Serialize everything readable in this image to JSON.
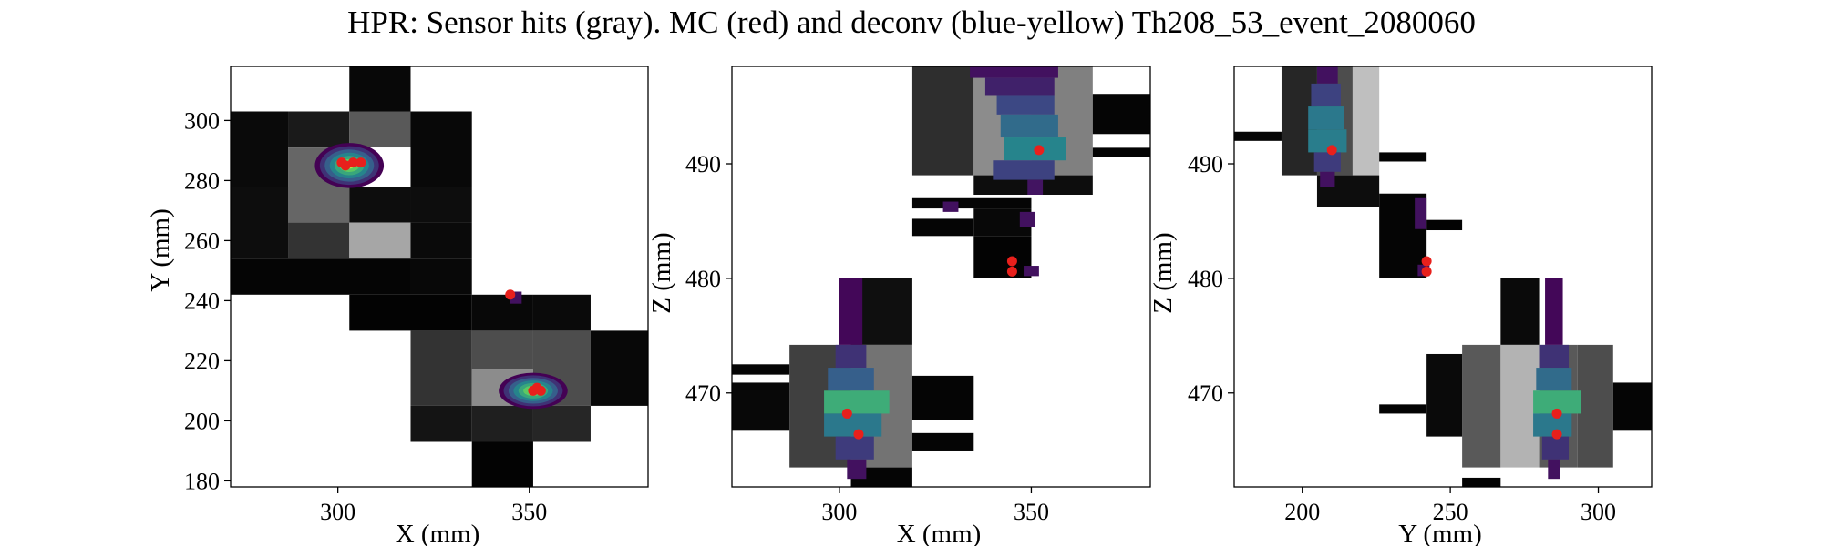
{
  "title": "HPR: Sensor hits (gray). MC (red) and deconv (blue-yellow) Th208_53_event_2080060",
  "colors": {
    "mc": "#e8201c",
    "deconv_colormap": [
      "#440154",
      "#3b528b",
      "#21918c",
      "#5ec962",
      "#fde725"
    ],
    "sensor_colormap": [
      "#000000",
      "#ffffff"
    ]
  },
  "chart_data": [
    {
      "type": "heatmap",
      "xlabel": "X (mm)",
      "ylabel": "Y (mm)",
      "xlim": [
        272,
        381
      ],
      "ylim": [
        178,
        318
      ],
      "xticks": [
        300,
        350
      ],
      "yticks": [
        180,
        200,
        220,
        240,
        260,
        280,
        300
      ],
      "sensor_hits": [
        {
          "x0": 303,
          "x1": 319,
          "y0": 303,
          "y1": 318,
          "v": 0.03
        },
        {
          "x0": 272,
          "x1": 287,
          "y0": 278,
          "y1": 303,
          "v": 0.04
        },
        {
          "x0": 287,
          "x1": 303,
          "y0": 291,
          "y1": 303,
          "v": 0.1
        },
        {
          "x0": 287,
          "x1": 303,
          "y0": 266,
          "y1": 291,
          "v": 0.4
        },
        {
          "x0": 303,
          "x1": 319,
          "y0": 291,
          "y1": 303,
          "v": 0.35
        },
        {
          "x0": 303,
          "x1": 319,
          "y0": 278,
          "y1": 291,
          "v": 1.0
        },
        {
          "x0": 303,
          "x1": 319,
          "y0": 266,
          "y1": 278,
          "v": 0.05
        },
        {
          "x0": 319,
          "x1": 335,
          "y0": 278,
          "y1": 303,
          "v": 0.03
        },
        {
          "x0": 319,
          "x1": 335,
          "y0": 266,
          "y1": 278,
          "v": 0.05
        },
        {
          "x0": 272,
          "x1": 287,
          "y0": 254,
          "y1": 278,
          "v": 0.05
        },
        {
          "x0": 287,
          "x1": 303,
          "y0": 254,
          "y1": 266,
          "v": 0.2
        },
        {
          "x0": 303,
          "x1": 319,
          "y0": 254,
          "y1": 266,
          "v": 0.65
        },
        {
          "x0": 319,
          "x1": 335,
          "y0": 254,
          "y1": 266,
          "v": 0.04
        },
        {
          "x0": 272,
          "x1": 319,
          "y0": 242,
          "y1": 254,
          "v": 0.02
        },
        {
          "x0": 319,
          "x1": 335,
          "y0": 242,
          "y1": 254,
          "v": 0.03
        },
        {
          "x0": 303,
          "x1": 335,
          "y0": 230,
          "y1": 242,
          "v": 0.01
        },
        {
          "x0": 335,
          "x1": 351,
          "y0": 230,
          "y1": 242,
          "v": 0.03
        },
        {
          "x0": 351,
          "x1": 366,
          "y0": 230,
          "y1": 242,
          "v": 0.04
        },
        {
          "x0": 319,
          "x1": 335,
          "y0": 205,
          "y1": 230,
          "v": 0.2
        },
        {
          "x0": 335,
          "x1": 351,
          "y0": 217,
          "y1": 230,
          "v": 0.3
        },
        {
          "x0": 335,
          "x1": 351,
          "y0": 205,
          "y1": 217,
          "v": 0.55
        },
        {
          "x0": 351,
          "x1": 366,
          "y0": 205,
          "y1": 230,
          "v": 0.3
        },
        {
          "x0": 366,
          "x1": 381,
          "y0": 205,
          "y1": 230,
          "v": 0.03
        },
        {
          "x0": 319,
          "x1": 335,
          "y0": 193,
          "y1": 205,
          "v": 0.08
        },
        {
          "x0": 335,
          "x1": 351,
          "y0": 193,
          "y1": 205,
          "v": 0.12
        },
        {
          "x0": 351,
          "x1": 366,
          "y0": 193,
          "y1": 205,
          "v": 0.15
        },
        {
          "x0": 335,
          "x1": 351,
          "y0": 178,
          "y1": 193,
          "v": 0.01
        }
      ],
      "deconv_blobs": [
        {
          "cx": 303,
          "cy": 285,
          "rx": 9,
          "ry": 7.5,
          "peak": 0.9
        },
        {
          "cx": 351,
          "cy": 210,
          "rx": 9,
          "ry": 6,
          "peak": 0.9
        }
      ],
      "deconv_cells": [
        {
          "x0": 345,
          "x1": 348,
          "y0": 239,
          "y1": 243,
          "v": 0.05
        }
      ],
      "mc_points": [
        {
          "x": 301,
          "y": 286
        },
        {
          "x": 302,
          "y": 285
        },
        {
          "x": 304,
          "y": 286
        },
        {
          "x": 306,
          "y": 286
        },
        {
          "x": 345,
          "y": 242
        },
        {
          "x": 351,
          "y": 210
        },
        {
          "x": 352,
          "y": 211
        },
        {
          "x": 353,
          "y": 210
        }
      ]
    },
    {
      "type": "heatmap",
      "xlabel": "X (mm)",
      "ylabel": "Z (mm)",
      "xlim": [
        272,
        381
      ],
      "ylim": [
        461.8,
        498.5
      ],
      "xticks": [
        300,
        350
      ],
      "yticks": [
        470,
        480,
        490
      ],
      "sensor_hits": [
        {
          "x0": 319,
          "x1": 335,
          "y0": 489,
          "y1": 498.5,
          "v": 0.18
        },
        {
          "x0": 335,
          "x1": 350,
          "y0": 489,
          "y1": 498.5,
          "v": 0.55
        },
        {
          "x0": 350,
          "x1": 366,
          "y0": 489,
          "y1": 498.5,
          "v": 0.5
        },
        {
          "x0": 366,
          "x1": 381,
          "y0": 492.6,
          "y1": 496.1,
          "v": 0.02
        },
        {
          "x0": 366,
          "x1": 381,
          "y0": 490.6,
          "y1": 491.4,
          "v": 0.01
        },
        {
          "x0": 335,
          "x1": 366,
          "y0": 487.3,
          "y1": 489,
          "v": 0.05
        },
        {
          "x0": 319,
          "x1": 350,
          "y0": 486.1,
          "y1": 487.0,
          "v": 0.02
        },
        {
          "x0": 335,
          "x1": 350,
          "y0": 483.7,
          "y1": 486.1,
          "v": 0.03
        },
        {
          "x0": 319,
          "x1": 335,
          "y0": 483.7,
          "y1": 485.2,
          "v": 0.02
        },
        {
          "x0": 335,
          "x1": 350,
          "y0": 480.0,
          "y1": 483.7,
          "v": 0.01
        },
        {
          "x0": 303,
          "x1": 319,
          "y0": 474.2,
          "y1": 480.0,
          "v": 0.06
        },
        {
          "x0": 287,
          "x1": 303,
          "y0": 463.5,
          "y1": 474.2,
          "v": 0.25
        },
        {
          "x0": 303,
          "x1": 319,
          "y0": 463.5,
          "y1": 474.2,
          "v": 0.45
        },
        {
          "x0": 272,
          "x1": 287,
          "y0": 471.6,
          "y1": 472.5,
          "v": 0.02
        },
        {
          "x0": 272,
          "x1": 287,
          "y0": 466.7,
          "y1": 470.9,
          "v": 0.03
        },
        {
          "x0": 319,
          "x1": 335,
          "y0": 467.6,
          "y1": 471.5,
          "v": 0.02
        },
        {
          "x0": 319,
          "x1": 335,
          "y0": 464.9,
          "y1": 466.5,
          "v": 0.02
        },
        {
          "x0": 303,
          "x1": 319,
          "y0": 461.8,
          "y1": 463.5,
          "v": 0.02
        }
      ],
      "deconv_cells": [
        {
          "x0": 334,
          "x1": 357,
          "y0": 497.5,
          "y1": 498.5,
          "v": 0.05
        },
        {
          "x0": 338,
          "x1": 356,
          "y0": 496.0,
          "y1": 497.5,
          "v": 0.1
        },
        {
          "x0": 341,
          "x1": 356,
          "y0": 494.3,
          "y1": 496.0,
          "v": 0.22
        },
        {
          "x0": 342,
          "x1": 357,
          "y0": 492.3,
          "y1": 494.3,
          "v": 0.35
        },
        {
          "x0": 343,
          "x1": 359,
          "y0": 490.3,
          "y1": 492.3,
          "v": 0.45
        },
        {
          "x0": 340,
          "x1": 356,
          "y0": 488.6,
          "y1": 490.3,
          "v": 0.2
        },
        {
          "x0": 349,
          "x1": 353,
          "y0": 487.3,
          "y1": 488.6,
          "v": 0.06
        },
        {
          "x0": 327,
          "x1": 331,
          "y0": 485.8,
          "y1": 486.7,
          "v": 0.05
        },
        {
          "x0": 347,
          "x1": 351,
          "y0": 484.5,
          "y1": 485.8,
          "v": 0.05
        },
        {
          "x0": 348,
          "x1": 352,
          "y0": 480.2,
          "y1": 481.1,
          "v": 0.05
        },
        {
          "x0": 300,
          "x1": 306,
          "y0": 474.2,
          "y1": 480.0,
          "v": 0.02
        },
        {
          "x0": 299,
          "x1": 307,
          "y0": 472.2,
          "y1": 474.2,
          "v": 0.15
        },
        {
          "x0": 297,
          "x1": 309,
          "y0": 470.2,
          "y1": 472.2,
          "v": 0.3
        },
        {
          "x0": 296,
          "x1": 313,
          "y0": 468.2,
          "y1": 470.2,
          "v": 0.62
        },
        {
          "x0": 296,
          "x1": 311,
          "y0": 466.2,
          "y1": 468.2,
          "v": 0.4
        },
        {
          "x0": 299,
          "x1": 309,
          "y0": 464.2,
          "y1": 466.2,
          "v": 0.18
        },
        {
          "x0": 302,
          "x1": 307,
          "y0": 462.5,
          "y1": 464.2,
          "v": 0.05
        }
      ],
      "mc_points": [
        {
          "x": 352,
          "y": 491.2
        },
        {
          "x": 345,
          "y": 481.5
        },
        {
          "x": 345,
          "y": 480.6
        },
        {
          "x": 302,
          "y": 468.2
        },
        {
          "x": 305,
          "y": 466.4
        }
      ]
    },
    {
      "type": "heatmap",
      "xlabel": "Y (mm)",
      "ylabel": "Z (mm)",
      "xlim": [
        177,
        318
      ],
      "ylim": [
        461.8,
        498.5
      ],
      "xticks": [
        200,
        250,
        300
      ],
      "yticks": [
        470,
        480,
        490
      ],
      "sensor_hits": [
        {
          "x0": 193,
          "x1": 205,
          "y0": 489,
          "y1": 498.5,
          "v": 0.15
        },
        {
          "x0": 205,
          "x1": 217,
          "y0": 489,
          "y1": 498.5,
          "v": 0.3
        },
        {
          "x0": 217,
          "x1": 226,
          "y0": 489,
          "y1": 498.5,
          "v": 0.75
        },
        {
          "x0": 177,
          "x1": 193,
          "y0": 492.0,
          "y1": 492.8,
          "v": 0.02
        },
        {
          "x0": 226,
          "x1": 242,
          "y0": 490.2,
          "y1": 491.0,
          "v": 0.01
        },
        {
          "x0": 205,
          "x1": 226,
          "y0": 486.2,
          "y1": 489.0,
          "v": 0.05
        },
        {
          "x0": 226,
          "x1": 242,
          "y0": 480.0,
          "y1": 487.4,
          "v": 0.02
        },
        {
          "x0": 242,
          "x1": 254,
          "y0": 484.2,
          "y1": 485.1,
          "v": 0.01
        },
        {
          "x0": 267,
          "x1": 280,
          "y0": 474.2,
          "y1": 480.0,
          "v": 0.04
        },
        {
          "x0": 254,
          "x1": 267,
          "y0": 463.5,
          "y1": 474.2,
          "v": 0.35
        },
        {
          "x0": 267,
          "x1": 280,
          "y0": 463.5,
          "y1": 474.2,
          "v": 0.7
        },
        {
          "x0": 280,
          "x1": 293,
          "y0": 463.5,
          "y1": 474.2,
          "v": 0.35
        },
        {
          "x0": 293,
          "x1": 305,
          "y0": 463.5,
          "y1": 474.2,
          "v": 0.3
        },
        {
          "x0": 242,
          "x1": 254,
          "y0": 466.2,
          "y1": 473.4,
          "v": 0.04
        },
        {
          "x0": 305,
          "x1": 318,
          "y0": 466.7,
          "y1": 470.9,
          "v": 0.02
        },
        {
          "x0": 226,
          "x1": 242,
          "y0": 468.2,
          "y1": 469.0,
          "v": 0.01
        },
        {
          "x0": 254,
          "x1": 267,
          "y0": 461.8,
          "y1": 462.6,
          "v": 0.01
        }
      ],
      "deconv_cells": [
        {
          "x0": 205,
          "x1": 212,
          "y0": 497.0,
          "y1": 498.5,
          "v": 0.05
        },
        {
          "x0": 203,
          "x1": 213,
          "y0": 495.0,
          "y1": 497.0,
          "v": 0.2
        },
        {
          "x0": 202,
          "x1": 214,
          "y0": 493.0,
          "y1": 495.0,
          "v": 0.4
        },
        {
          "x0": 202,
          "x1": 215,
          "y0": 491.0,
          "y1": 493.0,
          "v": 0.42
        },
        {
          "x0": 204,
          "x1": 213,
          "y0": 489.3,
          "y1": 491.0,
          "v": 0.18
        },
        {
          "x0": 206,
          "x1": 211,
          "y0": 488.0,
          "y1": 489.3,
          "v": 0.05
        },
        {
          "x0": 238,
          "x1": 242,
          "y0": 484.3,
          "y1": 487.0,
          "v": 0.05
        },
        {
          "x0": 239,
          "x1": 243,
          "y0": 480.2,
          "y1": 481.2,
          "v": 0.05
        },
        {
          "x0": 282,
          "x1": 288,
          "y0": 474.2,
          "y1": 480.0,
          "v": 0.02
        },
        {
          "x0": 280,
          "x1": 290,
          "y0": 472.2,
          "y1": 474.2,
          "v": 0.15
        },
        {
          "x0": 279,
          "x1": 291,
          "y0": 470.2,
          "y1": 472.2,
          "v": 0.35
        },
        {
          "x0": 278,
          "x1": 294,
          "y0": 468.2,
          "y1": 470.2,
          "v": 0.62
        },
        {
          "x0": 278,
          "x1": 291,
          "y0": 466.2,
          "y1": 468.2,
          "v": 0.4
        },
        {
          "x0": 281,
          "x1": 290,
          "y0": 464.2,
          "y1": 466.2,
          "v": 0.15
        },
        {
          "x0": 283,
          "x1": 287,
          "y0": 462.5,
          "y1": 464.2,
          "v": 0.05
        }
      ],
      "mc_points": [
        {
          "x": 210,
          "y": 491.2
        },
        {
          "x": 242,
          "y": 481.5
        },
        {
          "x": 242,
          "y": 480.6
        },
        {
          "x": 286,
          "y": 468.2
        },
        {
          "x": 286,
          "y": 466.4
        }
      ]
    }
  ]
}
